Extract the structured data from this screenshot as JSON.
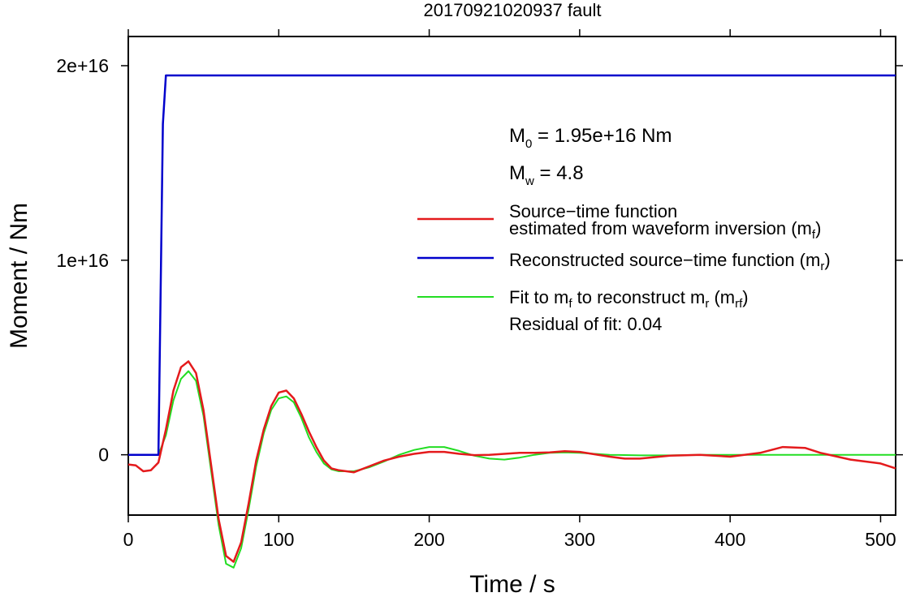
{
  "chart_data": {
    "type": "line",
    "title": "20170921020937 fault",
    "xlabel": "Time / s",
    "ylabel": "Moment / Nm",
    "xlim": [
      0,
      510
    ],
    "ylim": [
      -3100000000000000.0,
      2.15e+16
    ],
    "x_ticks": [
      0,
      100,
      200,
      300,
      400,
      500
    ],
    "x_tick_labels": [
      "0",
      "100",
      "200",
      "300",
      "400",
      "500"
    ],
    "y_ticks": [
      0,
      1e+16,
      2e+16
    ],
    "y_tick_labels": [
      "0",
      "1e+16",
      "2e+16"
    ],
    "grid": false,
    "legend_position": "right",
    "annotations": {
      "m0": {
        "sym": "M",
        "sub": "0",
        "rest": " = 1.95e+16 Nm"
      },
      "mw": {
        "sym": "M",
        "sub": "w",
        "rest": " = 4.8"
      },
      "residual": "Residual of fit: 0.04"
    },
    "legend": [
      {
        "line1": "Source−time function",
        "line2": "estimated from waveform inversion (m",
        "sub": "f",
        "tail": ")",
        "color": "#e41a1c"
      },
      {
        "line1": "Reconstructed source−time function (m",
        "sub": "r",
        "tail": ")",
        "color": "#0000cc"
      },
      {
        "p1": "Fit to m",
        "s1": "f",
        "p2": " to reconstruct m",
        "s2": "r",
        "p3": " (m",
        "s3": "rf",
        "p4": ")",
        "color": "#22dd22"
      }
    ],
    "series": [
      {
        "color": "#e41a1c",
        "x": [
          0,
          5,
          10,
          15,
          20,
          25,
          30,
          35,
          40,
          45,
          50,
          55,
          60,
          65,
          70,
          75,
          80,
          85,
          90,
          95,
          100,
          105,
          110,
          115,
          120,
          125,
          130,
          135,
          140,
          145,
          150,
          160,
          170,
          180,
          190,
          200,
          210,
          220,
          230,
          240,
          250,
          260,
          270,
          280,
          290,
          300,
          320,
          330,
          340,
          360,
          380,
          400,
          420,
          435,
          450,
          460,
          480,
          500,
          510
        ],
        "y": [
          -500000000000000.0,
          -550000000000000.0,
          -850000000000000.0,
          -800000000000000.0,
          -400000000000000.0,
          1300000000000000.0,
          3300000000000000.0,
          4500000000000000.0,
          4800000000000000.0,
          4200000000000000.0,
          2300000000000000.0,
          -500000000000000.0,
          -3300000000000000.0,
          -5200000000000000.0,
          -5500000000000000.0,
          -4500000000000000.0,
          -2500000000000000.0,
          -300000000000000.0,
          1300000000000000.0,
          2500000000000000.0,
          3200000000000000.0,
          3300000000000000.0,
          2900000000000000.0,
          2100000000000000.0,
          1200000000000000.0,
          400000000000000.0,
          -300000000000000.0,
          -700000000000000.0,
          -800000000000000.0,
          -850000000000000.0,
          -900000000000000.0,
          -600000000000000.0,
          -300000000000000.0,
          -100000000000000.0,
          50000000000000.0,
          150000000000000.0,
          150000000000000.0,
          50000000000000.0,
          -20000000000000.0,
          0,
          50000000000000.0,
          100000000000000.0,
          100000000000000.0,
          120000000000000.0,
          180000000000000.0,
          150000000000000.0,
          -100000000000000.0,
          -200000000000000.0,
          -200000000000000.0,
          -50000000000000.0,
          0,
          -100000000000000.0,
          100000000000000.0,
          400000000000000.0,
          350000000000000.0,
          100000000000000.0,
          -250000000000000.0,
          -450000000000000.0,
          -700000000000000.0
        ]
      },
      {
        "color": "#0000cc",
        "x": [
          0,
          20,
          23,
          25,
          510
        ],
        "y": [
          0,
          0,
          1.7e+16,
          1.95e+16,
          1.95e+16
        ]
      },
      {
        "color": "#22dd22",
        "x": [
          0,
          20,
          25,
          30,
          35,
          40,
          45,
          50,
          55,
          60,
          65,
          70,
          75,
          80,
          85,
          90,
          95,
          100,
          105,
          110,
          115,
          120,
          125,
          130,
          135,
          140,
          145,
          150,
          160,
          170,
          180,
          190,
          200,
          210,
          220,
          230,
          240,
          250,
          260,
          270,
          280,
          290,
          300,
          320,
          340,
          360,
          380,
          400,
          420,
          440,
          460,
          480,
          500,
          510
        ],
        "y": [
          0,
          0,
          1000000000000000.0,
          2800000000000000.0,
          3900000000000000.0,
          4300000000000000.0,
          3800000000000000.0,
          2000000000000000.0,
          -800000000000000.0,
          -3600000000000000.0,
          -5600000000000000.0,
          -5800000000000000.0,
          -4800000000000000.0,
          -2800000000000000.0,
          -600000000000000.0,
          1100000000000000.0,
          2300000000000000.0,
          2900000000000000.0,
          3000000000000000.0,
          2700000000000000.0,
          1900000000000000.0,
          900000000000000.0,
          150000000000000.0,
          -450000000000000.0,
          -750000000000000.0,
          -850000000000000.0,
          -850000000000000.0,
          -850000000000000.0,
          -650000000000000.0,
          -350000000000000.0,
          0,
          250000000000000.0,
          400000000000000.0,
          400000000000000.0,
          200000000000000.0,
          -50000000000000.0,
          -200000000000000.0,
          -250000000000000.0,
          -150000000000000.0,
          0,
          100000000000000.0,
          120000000000000.0,
          100000000000000.0,
          0,
          -30000000000000.0,
          -30000000000000.0,
          0,
          0,
          0,
          0,
          0,
          0,
          0,
          0
        ]
      }
    ]
  }
}
